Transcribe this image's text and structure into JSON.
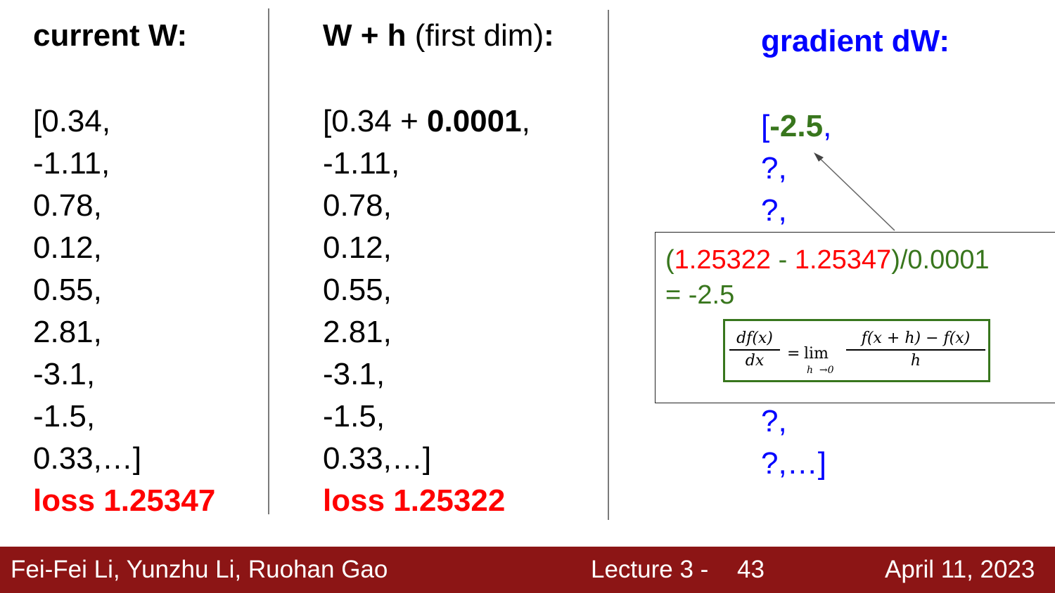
{
  "col1": {
    "heading": "current W:",
    "values": [
      "[0.34,",
      "-1.11,",
      "0.78,",
      "0.12,",
      "0.55,",
      "2.81,",
      "-3.1,",
      "-1.5,",
      "0.33,…]"
    ],
    "loss": "loss 1.25347"
  },
  "col2": {
    "heading_bold": "W + h",
    "heading_normal": " (first dim)",
    "heading_colon": ":",
    "first_prefix": "[0.34 + ",
    "first_bold": "0.0001",
    "first_suffix": ",",
    "values": [
      "-1.11,",
      "0.78,",
      "0.12,",
      "0.55,",
      "2.81,",
      "-3.1,",
      "-1.5,",
      "0.33,…]"
    ],
    "loss": "loss 1.25322"
  },
  "col3": {
    "heading": "gradient dW:",
    "first_bracket": "[",
    "first_value": "-2.5",
    "first_comma": ",",
    "values_top": [
      "?,",
      "?,"
    ],
    "values_bottom": [
      "?,",
      "?,…]"
    ]
  },
  "calc": {
    "open_paren": "(",
    "loss_a": "1.25322",
    "minus": " - ",
    "loss_b": "1.25347",
    "rest": ")/0.0001",
    "result": "= -2.5"
  },
  "formula": {
    "lhs_num": "df(x)",
    "lhs_den": "dx",
    "equals": "=",
    "lim": "lim",
    "lim_sub": "h  →0",
    "rhs_num": "f(x + h) − f(x)",
    "rhs_den": "h"
  },
  "footer": {
    "authors": "Fei-Fei Li, Yunzhu Li, Ruohan Gao",
    "lecture": "Lecture 3 -",
    "page": "43",
    "date": "April 11, 2023"
  },
  "colors": {
    "footer_bg": "#8c1515",
    "loss_red": "#ff0000",
    "gradient_blue": "#0000ff",
    "gradient_green": "#38761d"
  }
}
